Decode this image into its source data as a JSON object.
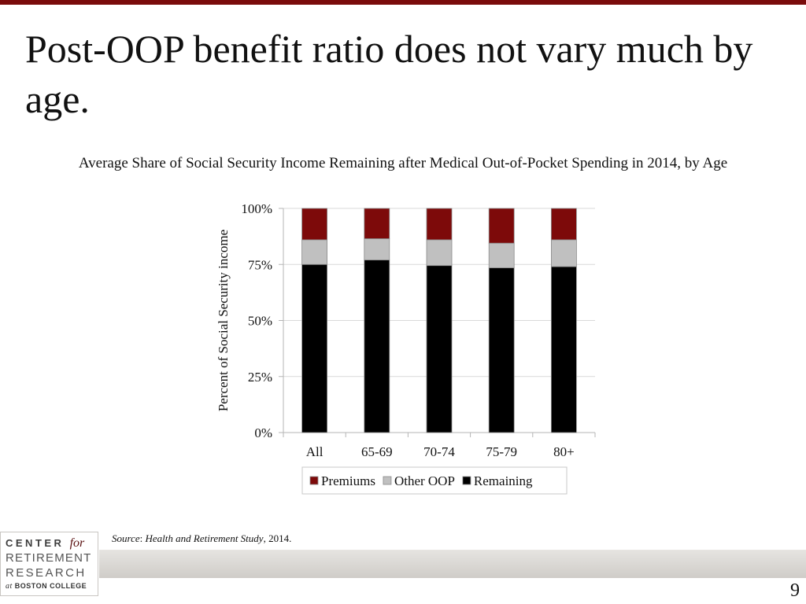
{
  "slide": {
    "title": "Post-OOP benefit ratio does not vary much by age.",
    "page_number": "9"
  },
  "source": {
    "label": "Source",
    "separator": ": ",
    "study": "Health and Retirement Study",
    "year": ", 2014."
  },
  "logo": {
    "line1": "CENTER",
    "line1_for": "for",
    "line2": "RETIREMENT",
    "line3": "RESEARCH",
    "line4_at": "at",
    "line4": "BOSTON COLLEGE"
  },
  "colors": {
    "accent": "#7a0c0c",
    "premiums": "#7d0a0a",
    "other_oop": "#c0c0c0",
    "remaining": "#000000",
    "grid": "#d9d9d9"
  },
  "chart_data": {
    "type": "bar",
    "stacked": true,
    "title": "Average Share of Social Security Income Remaining after Medical Out-of-Pocket Spending in 2014, by Age",
    "xlabel": "",
    "ylabel": "Percent of Social Security income",
    "categories": [
      "All",
      "65-69",
      "70-74",
      "75-79",
      "80+"
    ],
    "series": [
      {
        "name": "Remaining",
        "values": [
          75,
          77,
          74.5,
          73.5,
          74
        ]
      },
      {
        "name": "Other OOP",
        "values": [
          11,
          9.5,
          11.5,
          11,
          12
        ]
      },
      {
        "name": "Premiums",
        "values": [
          14,
          13.5,
          14,
          15.5,
          14
        ]
      }
    ],
    "legend_order": [
      "Premiums",
      "Other OOP",
      "Remaining"
    ],
    "ylim": [
      0,
      100
    ],
    "yticks": [
      0,
      25,
      50,
      75,
      100
    ],
    "ytick_labels": [
      "0%",
      "25%",
      "50%",
      "75%",
      "100%"
    ],
    "grid": true,
    "legend_position": "bottom"
  }
}
